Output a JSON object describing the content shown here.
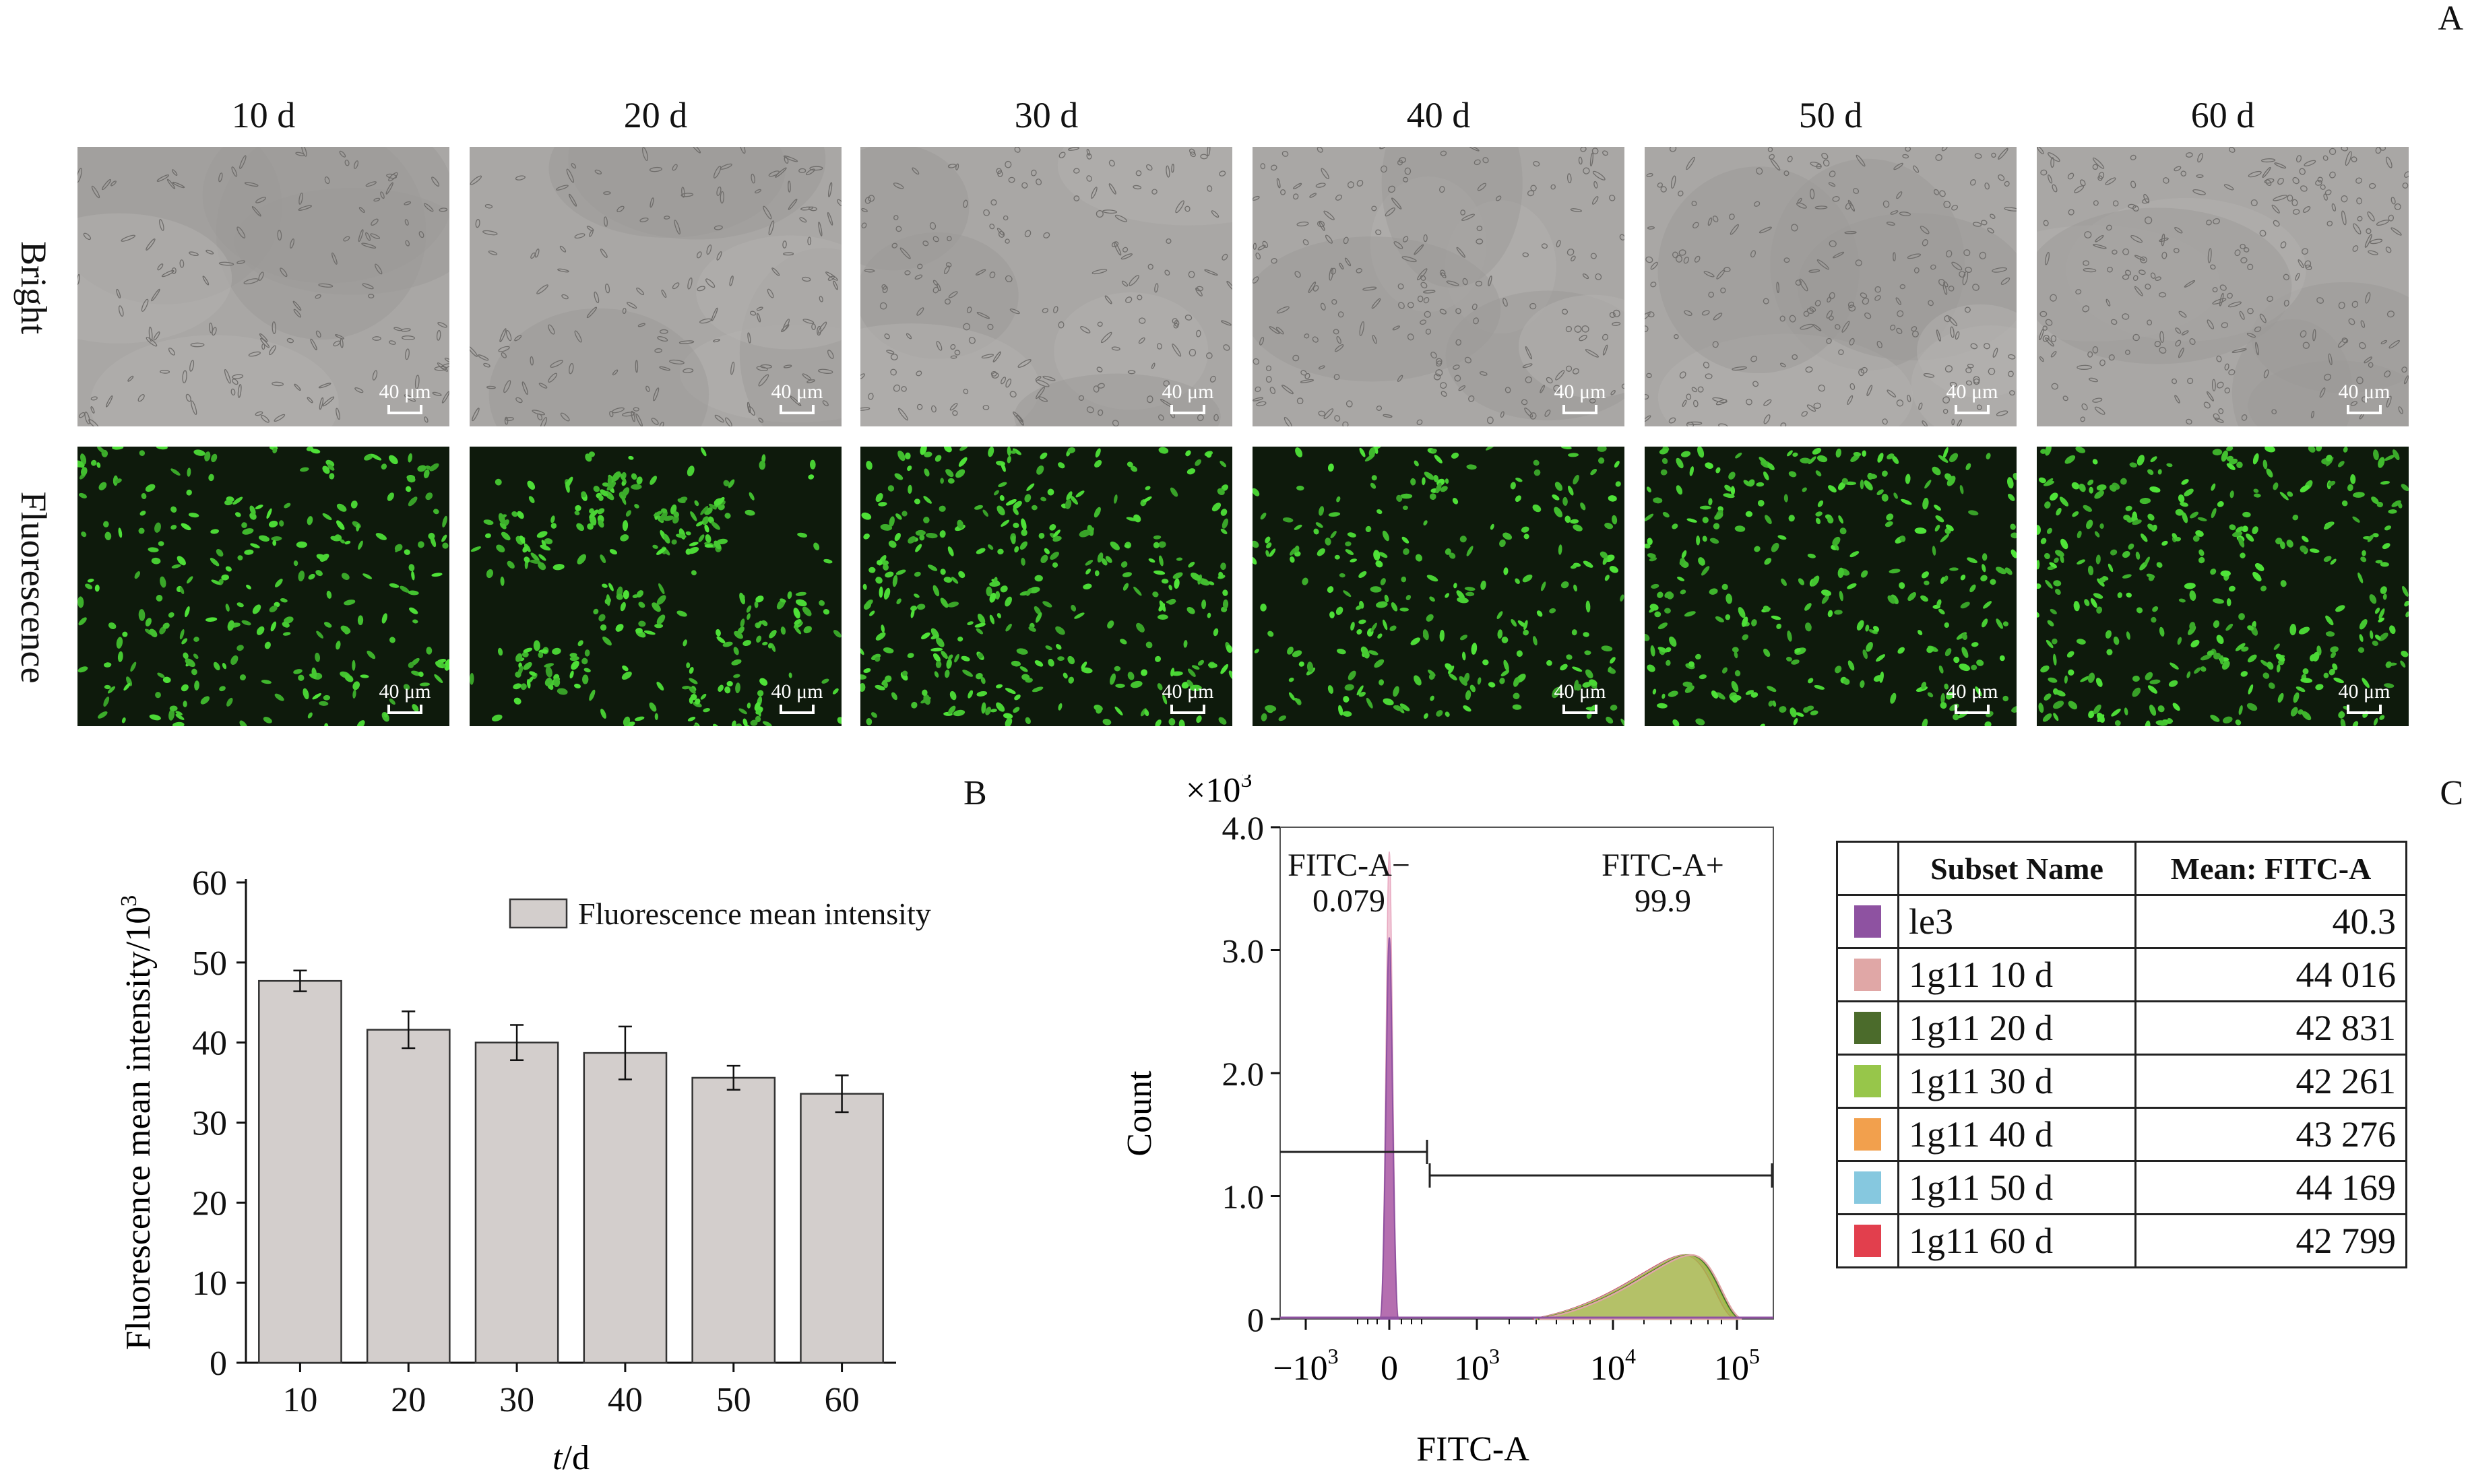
{
  "panels": {
    "a": "A",
    "b": "B",
    "c": "C"
  },
  "microscopy": {
    "days": [
      "10 d",
      "20 d",
      "30 d",
      "40 d",
      "50 d",
      "60 d"
    ],
    "rows": [
      "Bright",
      "Fluorescence"
    ],
    "scale_label": "40 μm"
  },
  "chart_data": [
    {
      "type": "bar",
      "categories": [
        "10",
        "20",
        "30",
        "40",
        "50",
        "60"
      ],
      "values": [
        47.7,
        41.6,
        40.0,
        38.7,
        35.6,
        33.6
      ],
      "errors": [
        1.3,
        2.3,
        2.2,
        3.3,
        1.5,
        2.3
      ],
      "legend": "Fluorescence mean intensity",
      "xlabel_italic": "t",
      "xlabel_rest": "/d",
      "ylabel": "Fluorescence mean intensity/10",
      "ylabel_sup": "3",
      "ylim": [
        0,
        60
      ],
      "yticks": [
        "0",
        "10",
        "20",
        "30",
        "40",
        "50",
        "60"
      ],
      "bar_color": "#d3cecc",
      "grid": false
    },
    {
      "type": "area",
      "title_prefix": "×10",
      "title_sup": "3",
      "ylabel": "Count",
      "xlabel": "FITC-A",
      "yticks": [
        "0",
        "1.0",
        "2.0",
        "3.0",
        "4.0"
      ],
      "ylim": [
        0,
        4.0
      ],
      "xticks": [
        {
          "base": "−10",
          "sup": "3"
        },
        {
          "base": "0",
          "sup": ""
        },
        {
          "base": "10",
          "sup": "3"
        },
        {
          "base": "10",
          "sup": "4"
        },
        {
          "base": "10",
          "sup": "5"
        }
      ],
      "gates": [
        {
          "name": "FITC-A−",
          "value": "0.079"
        },
        {
          "name": "FITC-A+",
          "value": "99.9"
        }
      ],
      "negative_peak_height": 3.1,
      "negative_peak_max": 3.8,
      "positive_peak_height": 0.52
    }
  ],
  "legend_table": {
    "headers": [
      "Subset Name",
      "Mean: FITC-A"
    ],
    "rows": [
      {
        "name": "le3",
        "mean": "40.3",
        "color": "#8e52a1"
      },
      {
        "name": "1g11 10 d",
        "mean": "44 016",
        "color": "#e0a7a6"
      },
      {
        "name": "1g11 20 d",
        "mean": "42 831",
        "color": "#4b6b2b"
      },
      {
        "name": "1g11 30 d",
        "mean": "42 261",
        "color": "#97c64a"
      },
      {
        "name": "1g11 40 d",
        "mean": "43 276",
        "color": "#f2a04d"
      },
      {
        "name": "1g11 50 d",
        "mean": "44 169",
        "color": "#86c8df"
      },
      {
        "name": "1g11 60 d",
        "mean": "42 799",
        "color": "#e23f4d"
      }
    ]
  }
}
